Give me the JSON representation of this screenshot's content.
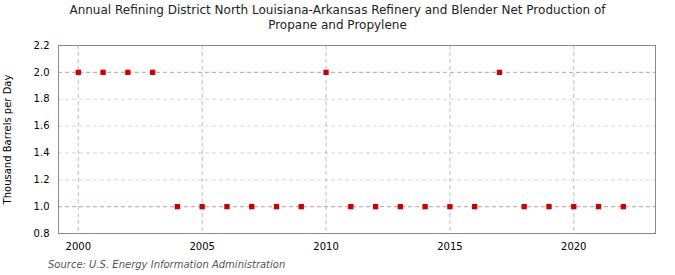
{
  "chart_data": {
    "type": "scatter",
    "title": "Annual Refining District North Louisiana-Arkansas Refinery and Blender Net Production of\nPropane and Propylene",
    "ylabel": "Thousand Barrels per Day",
    "source": "Source: U.S. Energy Information Administration",
    "x": [
      2000,
      2001,
      2002,
      2003,
      2004,
      2005,
      2006,
      2007,
      2008,
      2009,
      2010,
      2011,
      2012,
      2013,
      2014,
      2015,
      2016,
      2017,
      2018,
      2019,
      2020,
      2021,
      2022
    ],
    "values": [
      2.0,
      2.0,
      2.0,
      2.0,
      1.0,
      1.0,
      1.0,
      1.0,
      1.0,
      1.0,
      2.0,
      1.0,
      1.0,
      1.0,
      1.0,
      1.0,
      1.0,
      2.0,
      1.0,
      1.0,
      1.0,
      1.0,
      1.0
    ],
    "color": "#cc0000",
    "marker": "square",
    "hlines": {
      "values": [
        2.0,
        1.0
      ],
      "color": "#d4a0a0",
      "line_style": "dashed"
    },
    "ylim": [
      0.8,
      2.2
    ],
    "yticks": [
      0.8,
      {
        "value": 1.0,
        "label": "1.0"
      },
      1.2,
      1.4,
      1.6,
      1.8,
      {
        "value": 2.0,
        "label": "2.0"
      },
      2.2
    ],
    "xlim": [
      1999.2,
      2023.3
    ],
    "xticks": [
      2000,
      2005,
      2010,
      2015,
      2020
    ],
    "grid": true
  }
}
